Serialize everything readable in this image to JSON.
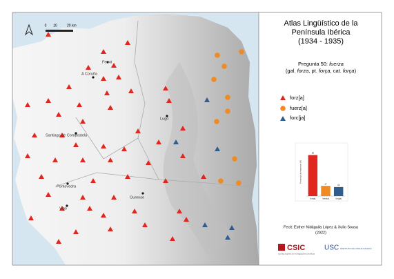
{
  "title": [
    "Atlas Lingüístico de la",
    "Península Ibérica",
    "(1934 - 1935)"
  ],
  "question": {
    "prefix": "Pregunta 50: ",
    "word": "fuerza"
  },
  "gloss": {
    "open": "(gal. ",
    "gal": "forza",
    "mid1": ", pt. ",
    "pt": "força",
    "mid2": ", cat. ",
    "cat": "força",
    "close": ")"
  },
  "scale": [
    "0",
    "10",
    "20 km"
  ],
  "cities": [
    "Ferrol",
    "A Coruña",
    "Lugo",
    "Santiago de Compostela",
    "Pontevedra",
    "Ourense",
    "Vigo"
  ],
  "legend": [
    "forz[a]",
    "fuerz[a]",
    "forc[ja]"
  ],
  "inset_chart": {
    "type": "bar",
    "y_label": "Porcentaje de respuestas (%)",
    "categories": [
      "forz[a]",
      "fuerz[a]",
      "forc[ja]"
    ],
    "values": [
      68,
      17,
      15
    ],
    "colors": [
      "#e0261f",
      "#f08a24",
      "#2f5d8c"
    ],
    "ylim": [
      0,
      80
    ]
  },
  "credit": [
    "Fecit: Esther Nidáguila López & Xulio Sousa",
    "(2022)"
  ],
  "logos": {
    "csic": "CSIC",
    "csic_sub": "Consejo Superior de Investigaciones Científicas",
    "usc": "USC",
    "usc_sub": "INSTITUTO DA LINGUA GALEGA"
  }
}
